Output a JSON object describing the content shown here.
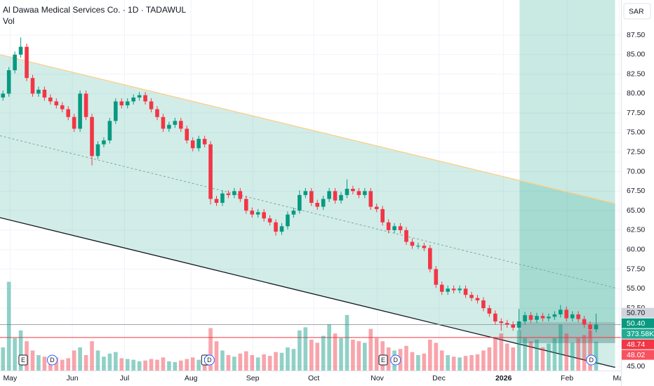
{
  "chart_data": {
    "type": "candlestick",
    "title": "Al Dawaa Medical Services Co. · 1D · TADAWUL",
    "volume_title": "Vol",
    "currency": "SAR",
    "up_color": "#089981",
    "down_color": "#f23645",
    "grid": true,
    "xlim": [
      -0.5,
      104.2
    ],
    "ylim": [
      44.5,
      92
    ],
    "volume_ylim": [
      0,
      1300000
    ],
    "yticks": [
      {
        "value": 45,
        "label": "45.00"
      },
      {
        "value": 52.5,
        "label": "52.50"
      },
      {
        "value": 55,
        "label": "55.00"
      },
      {
        "value": 57.5,
        "label": "57.50"
      },
      {
        "value": 60,
        "label": "60.00"
      },
      {
        "value": 62.5,
        "label": "62.50"
      },
      {
        "value": 65,
        "label": "65.00"
      },
      {
        "value": 67.5,
        "label": "67.50"
      },
      {
        "value": 70,
        "label": "70.00"
      },
      {
        "value": 72.5,
        "label": "72.50"
      },
      {
        "value": 75,
        "label": "75.00"
      },
      {
        "value": 77.5,
        "label": "77.50"
      },
      {
        "value": 80,
        "label": "80.00"
      },
      {
        "value": 82.5,
        "label": "82.50"
      },
      {
        "value": 85,
        "label": "85.00"
      },
      {
        "value": 87.5,
        "label": "87.50"
      }
    ],
    "xticks": [
      {
        "value": 1.2,
        "label": "May"
      },
      {
        "value": 11.7,
        "label": "Jun"
      },
      {
        "value": 20.5,
        "label": "Jul"
      },
      {
        "value": 31.7,
        "label": "Aug"
      },
      {
        "value": 42.1,
        "label": "Sep"
      },
      {
        "value": 52.4,
        "label": "Oct"
      },
      {
        "value": 63.1,
        "label": "Nov"
      },
      {
        "value": 73.5,
        "label": "Dec"
      },
      {
        "value": 84.4,
        "label": "2026"
      },
      {
        "value": 95.1,
        "label": "Feb"
      },
      {
        "value": 103.9,
        "label": "Mar"
      }
    ],
    "open": [
      79.5,
      80,
      83,
      85,
      86,
      82,
      80,
      80.5,
      79.5,
      79,
      78.5,
      78,
      77,
      75.5,
      80,
      77,
      72,
      73.5,
      74,
      76.5,
      79,
      78.5,
      79,
      79.5,
      79.8,
      79,
      78,
      77,
      75.5,
      76,
      76.5,
      75.5,
      74,
      73,
      74.2,
      73.5,
      66.5,
      66,
      67.2,
      67,
      67.5,
      66.5,
      65,
      64.5,
      64.8,
      64,
      63.5,
      62.3,
      63,
      64.5,
      65,
      67,
      67.5,
      66,
      65.5,
      66.5,
      67.5,
      66.3,
      67,
      67.8,
      67.5,
      67,
      67.5,
      65.5,
      65.2,
      63.5,
      62.5,
      63,
      62.5,
      61,
      60.5,
      60.5,
      60.2,
      57.5,
      55.5,
      54.6,
      55,
      54.8,
      55,
      54.2,
      53.8,
      53.5,
      52.5,
      51.8,
      50.8,
      50.6,
      50.4,
      50,
      50.8,
      51.6,
      51,
      51.5,
      51.2,
      51.4,
      51.7,
      52.3,
      51.2,
      51.7,
      51.1,
      50.4,
      49.8
    ],
    "high": [
      80.4,
      83.4,
      85.4,
      87.2,
      86.4,
      82.4,
      80.9,
      80.9,
      79.9,
      79.4,
      78.9,
      78.4,
      77.4,
      80.4,
      80.4,
      77.4,
      73.9,
      74.4,
      76.9,
      79.4,
      79.4,
      79.4,
      79.9,
      80.2,
      80.2,
      79.4,
      78.4,
      77.4,
      76.4,
      76.9,
      76.9,
      75.9,
      74.4,
      74.6,
      74.6,
      73.9,
      66.9,
      67.6,
      67.6,
      67.9,
      67.9,
      66.9,
      65.4,
      65.2,
      65.2,
      64.4,
      63.9,
      63.4,
      64.9,
      65.4,
      67.6,
      67.9,
      67.9,
      66.4,
      66.9,
      67.9,
      67.9,
      67.4,
      69,
      68.2,
      67.9,
      67.9,
      67.9,
      65.9,
      65.6,
      63.9,
      63.4,
      63.4,
      62.9,
      61.4,
      60.9,
      60.9,
      60.6,
      57.9,
      55.9,
      55.4,
      55.4,
      55.4,
      55.4,
      54.6,
      54.2,
      53.9,
      52.9,
      52.2,
      51.2,
      51,
      50.8,
      52.4,
      52,
      52,
      51.9,
      51.9,
      51.8,
      52.1,
      52.9,
      52.7,
      52.1,
      52.1,
      51.5,
      50.8,
      51.8
    ],
    "low": [
      79.1,
      79.6,
      82.6,
      84.6,
      81.6,
      79.6,
      79.6,
      79.1,
      78.6,
      78.1,
      77.6,
      76.6,
      75.1,
      75.1,
      76.6,
      70.8,
      71.6,
      73.1,
      73.6,
      76.1,
      78.1,
      78.1,
      78.6,
      79.1,
      78.6,
      77.6,
      76.6,
      75.1,
      75.1,
      75.6,
      75.1,
      73.6,
      72.6,
      72.6,
      73.1,
      65.8,
      65.6,
      65.6,
      66.6,
      66.6,
      66.1,
      64.6,
      64.1,
      64.1,
      63.6,
      63.1,
      61.8,
      61.9,
      62.6,
      64.1,
      64.6,
      66.6,
      65.6,
      65.1,
      65.1,
      66.1,
      65.9,
      65.9,
      66.6,
      67.1,
      66.6,
      66.6,
      65.1,
      64.8,
      63.1,
      62.1,
      62.1,
      62.1,
      60.6,
      60.1,
      60.1,
      59.8,
      57.1,
      55.1,
      54.2,
      54.2,
      54.4,
      54.4,
      53.8,
      53.4,
      53.1,
      52.1,
      51.4,
      50.4,
      49.6,
      50,
      49.6,
      49.6,
      50.4,
      50.6,
      50.6,
      50.8,
      50.8,
      51,
      51.3,
      50.8,
      50.8,
      50.7,
      50,
      48.8,
      49.4
    ],
    "close": [
      80,
      83,
      85,
      86,
      82,
      80,
      80.5,
      79.5,
      79,
      78.5,
      78,
      77,
      75.5,
      80,
      77,
      72,
      73.5,
      74,
      76.5,
      79,
      78.5,
      79,
      79.5,
      79.8,
      79,
      78,
      77,
      75.5,
      76,
      76.5,
      75.5,
      74,
      73,
      74.2,
      73.5,
      66.5,
      66,
      67.2,
      67,
      67.5,
      66.5,
      65,
      64.5,
      64.8,
      64,
      63.5,
      62.3,
      63,
      64.5,
      65,
      67,
      67.5,
      66,
      65.5,
      66.5,
      67.5,
      66.3,
      67,
      67.8,
      67.5,
      67,
      67.5,
      65.5,
      65.2,
      63.5,
      62.5,
      63,
      62.5,
      61,
      60.5,
      60.5,
      60.2,
      57.5,
      55.5,
      54.6,
      55,
      54.8,
      55,
      54.2,
      53.8,
      53.5,
      52.5,
      51.8,
      50.8,
      50.6,
      50.4,
      50,
      50.8,
      51.6,
      51,
      51.5,
      51.2,
      51.4,
      51.7,
      52.3,
      51.2,
      51.7,
      51.1,
      50.4,
      49.8,
      50.4
    ],
    "volume": [
      300000,
      1150000,
      420000,
      520000,
      380000,
      260000,
      200000,
      180000,
      150000,
      170000,
      140000,
      160000,
      260000,
      300000,
      200000,
      380000,
      260000,
      180000,
      220000,
      240000,
      160000,
      150000,
      140000,
      120000,
      130000,
      150000,
      140000,
      170000,
      120000,
      110000,
      130000,
      150000,
      170000,
      140000,
      160000,
      550000,
      380000,
      260000,
      200000,
      180000,
      220000,
      250000,
      200000,
      170000,
      210000,
      190000,
      240000,
      230000,
      300000,
      280000,
      520000,
      560000,
      400000,
      360000,
      450000,
      600000,
      480000,
      420000,
      720000,
      400000,
      380000,
      360000,
      540000,
      420000,
      380000,
      300000,
      260000,
      280000,
      320000,
      240000,
      200000,
      220000,
      400000,
      360000,
      260000,
      200000,
      180000,
      170000,
      190000,
      200000,
      210000,
      260000,
      300000,
      420000,
      480000,
      350000,
      300000,
      520000,
      420000,
      380000,
      400000,
      300000,
      350000,
      420000,
      600000,
      480000,
      360000,
      420000,
      460000,
      520000,
      373580
    ],
    "channel": {
      "x": [
        -0.5,
        103.2
      ],
      "upper": [
        85,
        65.9
      ],
      "middle": [
        74.6,
        55.1
      ],
      "lower": [
        64.1,
        44.9
      ]
    },
    "zone_x": [
      87.1,
      103.2
    ],
    "price_labels": [
      {
        "value": 50.7,
        "label": "50.70",
        "color": "#d1d4dc"
      },
      {
        "value": 50.4,
        "label": "50.40",
        "color": "#089981"
      },
      {
        "value": 373580,
        "label": "373.58K",
        "color": "#22ab94",
        "axis": "volume"
      },
      {
        "value": 48.74,
        "label": "48.74",
        "color": "#f23645"
      },
      {
        "value": 48.02,
        "label": "48.02",
        "color": "#f7525f"
      }
    ],
    "events": [
      {
        "label": "E",
        "x": 3.4
      },
      {
        "label": "D",
        "x": 8.3
      },
      {
        "label": "E",
        "x": 34.2
      },
      {
        "label": "D",
        "x": 34.8
      },
      {
        "label": "E",
        "x": 64.1
      },
      {
        "label": "D",
        "x": 66.2
      },
      {
        "label": "D",
        "x": 99.2
      }
    ]
  }
}
